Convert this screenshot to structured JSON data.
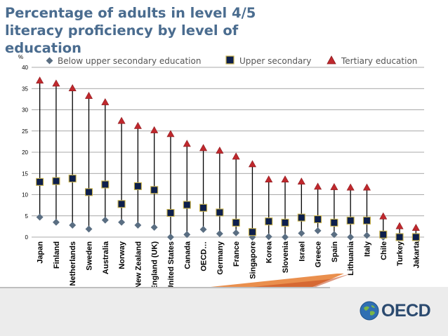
{
  "title": "Percentage of adults in level 4/5 literacy proficiency by level of education",
  "logo_text": "OECD",
  "colors": {
    "title": "#4a6c8f",
    "below_marker": "#5a6e82",
    "upper_marker": "#0d1f4c",
    "upper_stroke": "#c9b24a",
    "tertiary_marker": "#c0282d",
    "tertiary_stroke": "#8a1a1e",
    "range_line": "#000000",
    "grid": "#8c8c8c"
  },
  "chart_data": {
    "type": "scatter",
    "ylabel": "%",
    "ylim": [
      0,
      40
    ],
    "yticks": [
      0,
      5,
      10,
      15,
      20,
      25,
      30,
      35,
      40
    ],
    "grid": true,
    "legend_position": "top",
    "categories": [
      "Japan",
      "Finland",
      "Netherlands",
      "Sweden",
      "Australia",
      "Norway",
      "New Zealand",
      "England (UK)",
      "United States",
      "Canada",
      "OECD…",
      "Germany",
      "France",
      "Singapore",
      "Korea",
      "Slovenia",
      "Israel",
      "Greece",
      "Spain",
      "Lithuania",
      "Italy",
      "Chile",
      "Turkey",
      "Jakarta"
    ],
    "series": [
      {
        "name": "Below upper secondary education",
        "marker": "diamond",
        "values": [
          4.7,
          3.5,
          2.8,
          1.9,
          4.0,
          3.5,
          2.8,
          2.3,
          0.0,
          0.6,
          1.8,
          0.8,
          1.0,
          0.0,
          0.1,
          0.0,
          0.9,
          1.5,
          0.6,
          0.0,
          0.4,
          0.0,
          0.0,
          0.0
        ]
      },
      {
        "name": "Upper secondary",
        "marker": "square",
        "values": [
          13.0,
          13.2,
          13.8,
          10.6,
          12.4,
          7.8,
          12.0,
          11.1,
          5.7,
          7.6,
          6.9,
          5.8,
          3.4,
          1.2,
          3.7,
          3.4,
          4.6,
          4.2,
          3.4,
          3.9,
          3.9,
          0.6,
          0.0,
          0.0
        ]
      },
      {
        "name": "Tertiary education",
        "marker": "triangle",
        "values": [
          36.9,
          36.2,
          35.1,
          33.3,
          31.8,
          27.4,
          26.2,
          25.2,
          24.3,
          22.0,
          21.0,
          20.4,
          19.0,
          17.2,
          13.6,
          13.6,
          13.1,
          11.9,
          11.8,
          11.7,
          11.7,
          4.9,
          2.6,
          2.2
        ]
      }
    ]
  }
}
